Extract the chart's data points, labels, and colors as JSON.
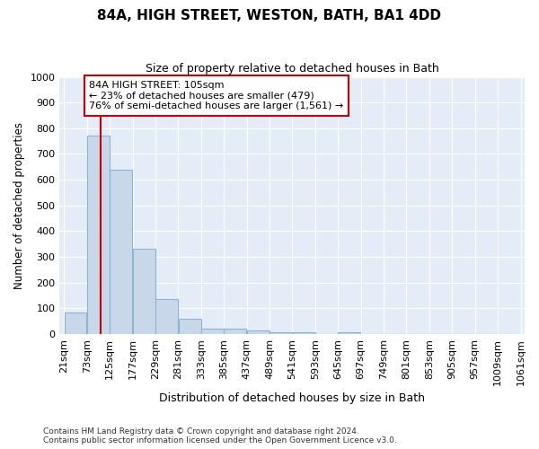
{
  "title": "84A, HIGH STREET, WESTON, BATH, BA1 4DD",
  "subtitle": "Size of property relative to detached houses in Bath",
  "xlabel": "Distribution of detached houses by size in Bath",
  "ylabel": "Number of detached properties",
  "footer_line1": "Contains HM Land Registry data © Crown copyright and database right 2024.",
  "footer_line2": "Contains public sector information licensed under the Open Government Licence v3.0.",
  "bar_edges": [
    21,
    73,
    125,
    177,
    229,
    281,
    333,
    385,
    437,
    489,
    541,
    593,
    645,
    697,
    749,
    801,
    853,
    905,
    957,
    1009,
    1061
  ],
  "bar_heights": [
    85,
    770,
    640,
    330,
    135,
    60,
    22,
    20,
    15,
    8,
    5,
    0,
    8,
    0,
    0,
    0,
    0,
    0,
    0,
    0
  ],
  "bar_color": "#c8d8ea",
  "bar_edge_color": "#8ab4d4",
  "bg_color": "#e4ecf7",
  "grid_color": "#ffffff",
  "red_line_x": 105,
  "annotation_title": "84A HIGH STREET: 105sqm",
  "annotation_line1": "← 23% of detached houses are smaller (479)",
  "annotation_line2": "76% of semi-detached houses are larger (1,561) →",
  "annotation_box_color": "#ffffff",
  "annotation_border_color": "#cc0000",
  "ylim": [
    0,
    1000
  ],
  "yticks": [
    0,
    100,
    200,
    300,
    400,
    500,
    600,
    700,
    800,
    900,
    1000
  ]
}
